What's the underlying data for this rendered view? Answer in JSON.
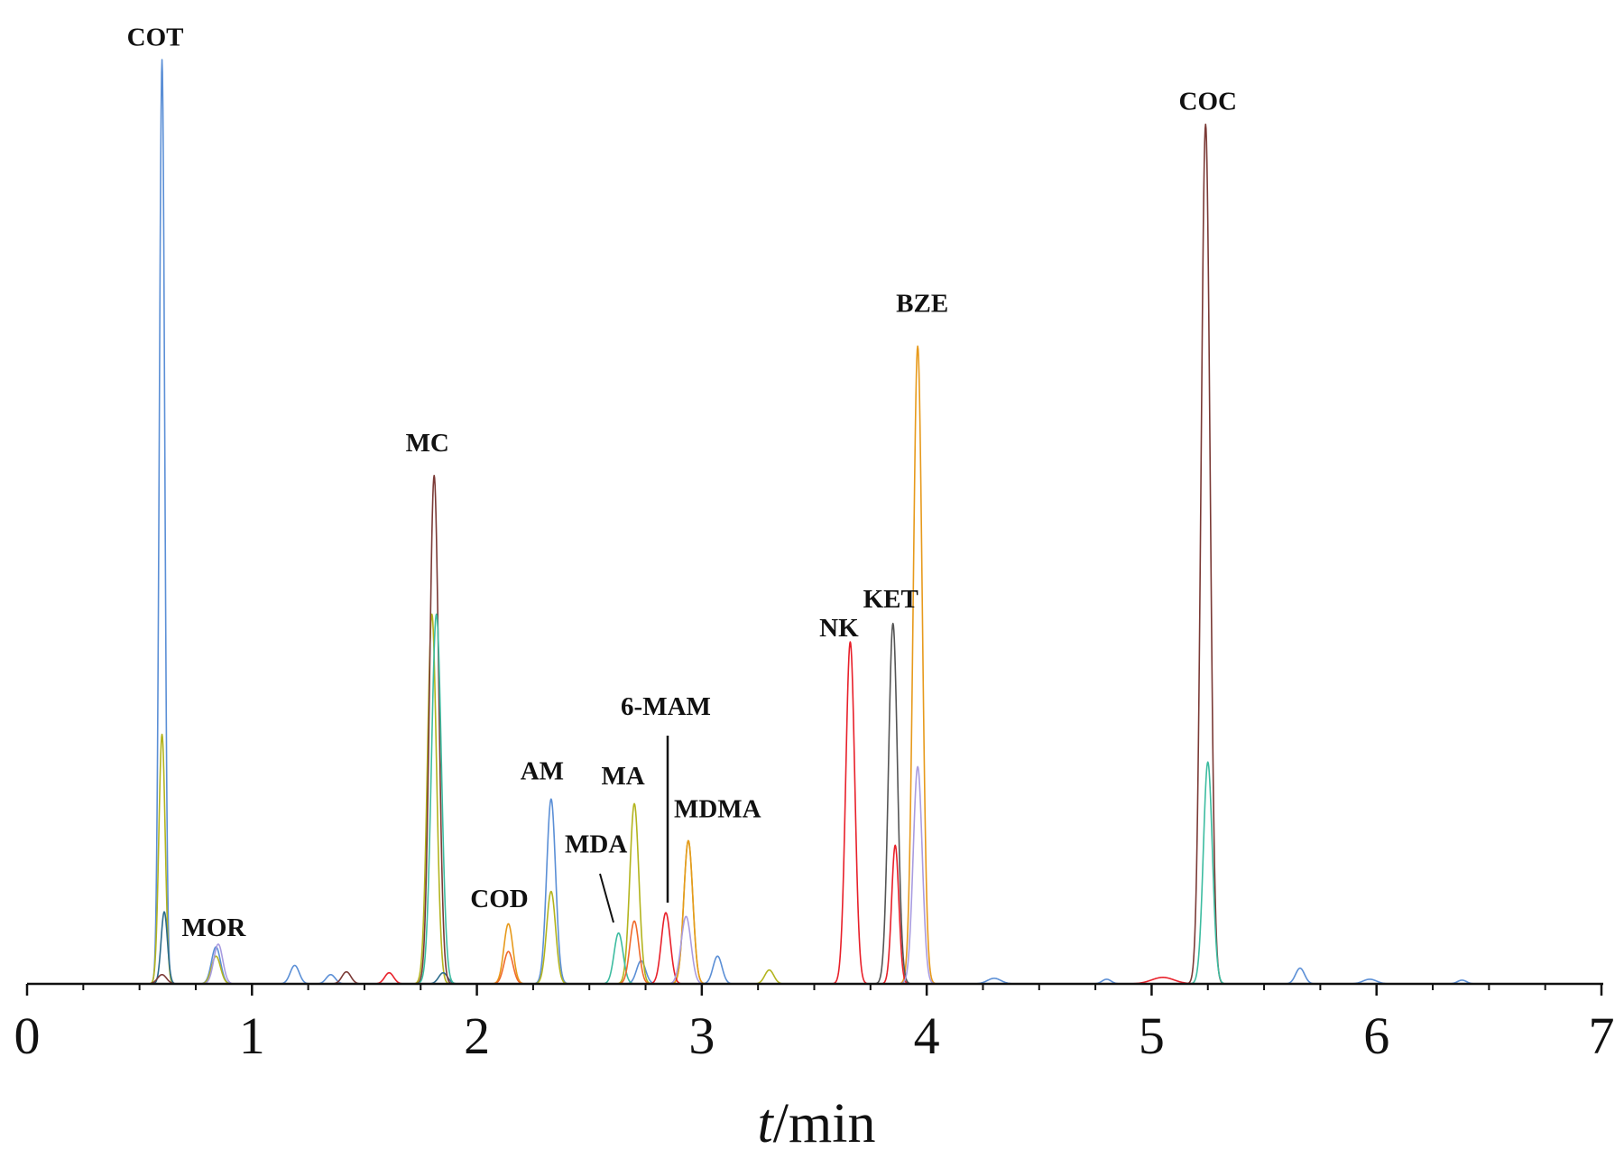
{
  "chart_data": {
    "type": "line",
    "title": "",
    "xlabel": "t/min",
    "xlabel_var": "t",
    "xlabel_unit": "/min",
    "ylabel": "",
    "xlim": [
      0,
      7
    ],
    "ylim": [
      0,
      100
    ],
    "grid": false,
    "x_ticks": [
      0,
      1,
      2,
      3,
      4,
      5,
      6,
      7
    ],
    "x_tick_labels": [
      "0",
      "1",
      "2",
      "3",
      "4",
      "5",
      "6",
      "7"
    ],
    "series": [
      {
        "color": "#5b8fd6",
        "peaks": [
          [
            0.6,
            100,
            0.012
          ],
          [
            0.84,
            4,
            0.02
          ],
          [
            1.19,
            2,
            0.02
          ],
          [
            1.35,
            1,
            0.02
          ],
          [
            2.33,
            20,
            0.02
          ],
          [
            2.73,
            2.5,
            0.02
          ],
          [
            3.07,
            3,
            0.02
          ],
          [
            4.3,
            0.6,
            0.03
          ],
          [
            4.8,
            0.5,
            0.02
          ],
          [
            5.66,
            1.7,
            0.02
          ],
          [
            5.97,
            0.5,
            0.03
          ],
          [
            6.38,
            0.4,
            0.02
          ]
        ]
      },
      {
        "color": "#b3b41e",
        "peaks": [
          [
            0.6,
            27,
            0.014
          ],
          [
            0.84,
            3,
            0.02
          ],
          [
            1.8,
            40,
            0.02
          ],
          [
            2.33,
            10,
            0.02
          ],
          [
            2.7,
            19.5,
            0.02
          ],
          [
            2.94,
            15.5,
            0.02
          ],
          [
            3.3,
            1.5,
            0.02
          ]
        ]
      },
      {
        "color": "#2c6c8c",
        "peaks": [
          [
            0.61,
            7.8,
            0.014
          ],
          [
            1.85,
            1.2,
            0.02
          ]
        ]
      },
      {
        "color": "#7b3a36",
        "peaks": [
          [
            0.6,
            1,
            0.02
          ],
          [
            1.42,
            1.3,
            0.02
          ],
          [
            1.81,
            55,
            0.02
          ],
          [
            5.24,
            93,
            0.02
          ]
        ]
      },
      {
        "color": "#3dbca0",
        "peaks": [
          [
            1.82,
            40,
            0.022
          ],
          [
            2.63,
            5.5,
            0.02
          ],
          [
            5.25,
            24,
            0.02
          ]
        ]
      },
      {
        "color": "#e79a1c",
        "peaks": [
          [
            2.14,
            6.5,
            0.02
          ],
          [
            2.94,
            15.5,
            0.02
          ],
          [
            3.96,
            69,
            0.02
          ]
        ]
      },
      {
        "color": "#f06a2b",
        "peaks": [
          [
            2.14,
            3.5,
            0.02
          ],
          [
            2.7,
            6.8,
            0.02
          ]
        ]
      },
      {
        "color": "#e8202a",
        "peaks": [
          [
            1.61,
            1.2,
            0.02
          ],
          [
            2.84,
            7.7,
            0.02
          ],
          [
            3.66,
            37,
            0.02
          ],
          [
            3.86,
            15,
            0.016
          ],
          [
            5.05,
            0.7,
            0.05
          ]
        ]
      },
      {
        "color": "#555555",
        "peaks": [
          [
            3.85,
            39,
            0.02
          ]
        ]
      },
      {
        "color": "#a99ce0",
        "peaks": [
          [
            0.85,
            4.3,
            0.02
          ],
          [
            2.93,
            7.3,
            0.022
          ],
          [
            3.96,
            23.5,
            0.02
          ]
        ]
      }
    ],
    "annotations": [
      {
        "text": "COT",
        "x": 0.57,
        "y": 101.5
      },
      {
        "text": "MOR",
        "x": 0.83,
        "y": 5.2
      },
      {
        "text": "MC",
        "x": 1.78,
        "y": 57.6
      },
      {
        "text": "COD",
        "x": 2.1,
        "y": 8.3
      },
      {
        "text": "AM",
        "x": 2.29,
        "y": 22.1
      },
      {
        "text": "MA",
        "x": 2.65,
        "y": 21.6
      },
      {
        "text": "MDA",
        "x": 2.53,
        "y": 14.2
      },
      {
        "text": "6-MAM",
        "x": 2.84,
        "y": 29.1
      },
      {
        "text": "MDMA",
        "x": 3.07,
        "y": 18.0
      },
      {
        "text": "NK",
        "x": 3.61,
        "y": 37.6
      },
      {
        "text": "KET",
        "x": 3.84,
        "y": 40.7
      },
      {
        "text": "BZE",
        "x": 3.98,
        "y": 72.7
      },
      {
        "text": "COC",
        "x": 5.25,
        "y": 94.6
      }
    ]
  }
}
